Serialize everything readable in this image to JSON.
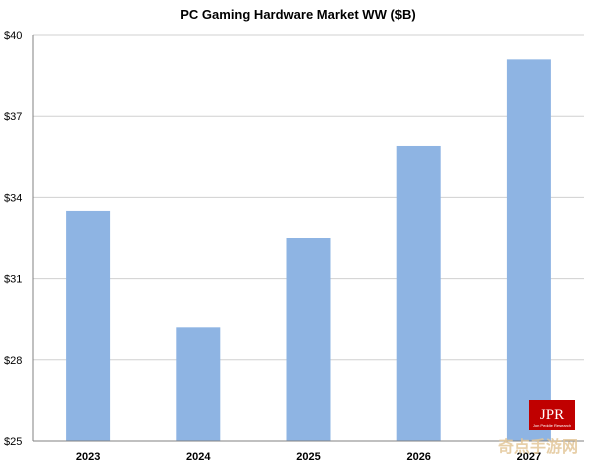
{
  "chart_data": {
    "type": "bar",
    "title": "PC Gaming  Hardware Market WW ($B)",
    "xlabel": "",
    "ylabel": "",
    "categories": [
      "2023",
      "2024",
      "2025",
      "2026",
      "2027"
    ],
    "values": [
      33.5,
      29.2,
      32.5,
      35.9,
      39.1
    ],
    "ylim": [
      25,
      40
    ],
    "yticks": [
      25,
      28,
      31,
      34,
      37,
      40
    ],
    "ytick_prefix": "$",
    "grid": true,
    "bar_color": "#8EB4E3"
  },
  "logo": {
    "text": "JPR",
    "subtext": "Jon Peddie Research",
    "color": "#C00000"
  },
  "watermark": {
    "text": "奇点手游网"
  }
}
